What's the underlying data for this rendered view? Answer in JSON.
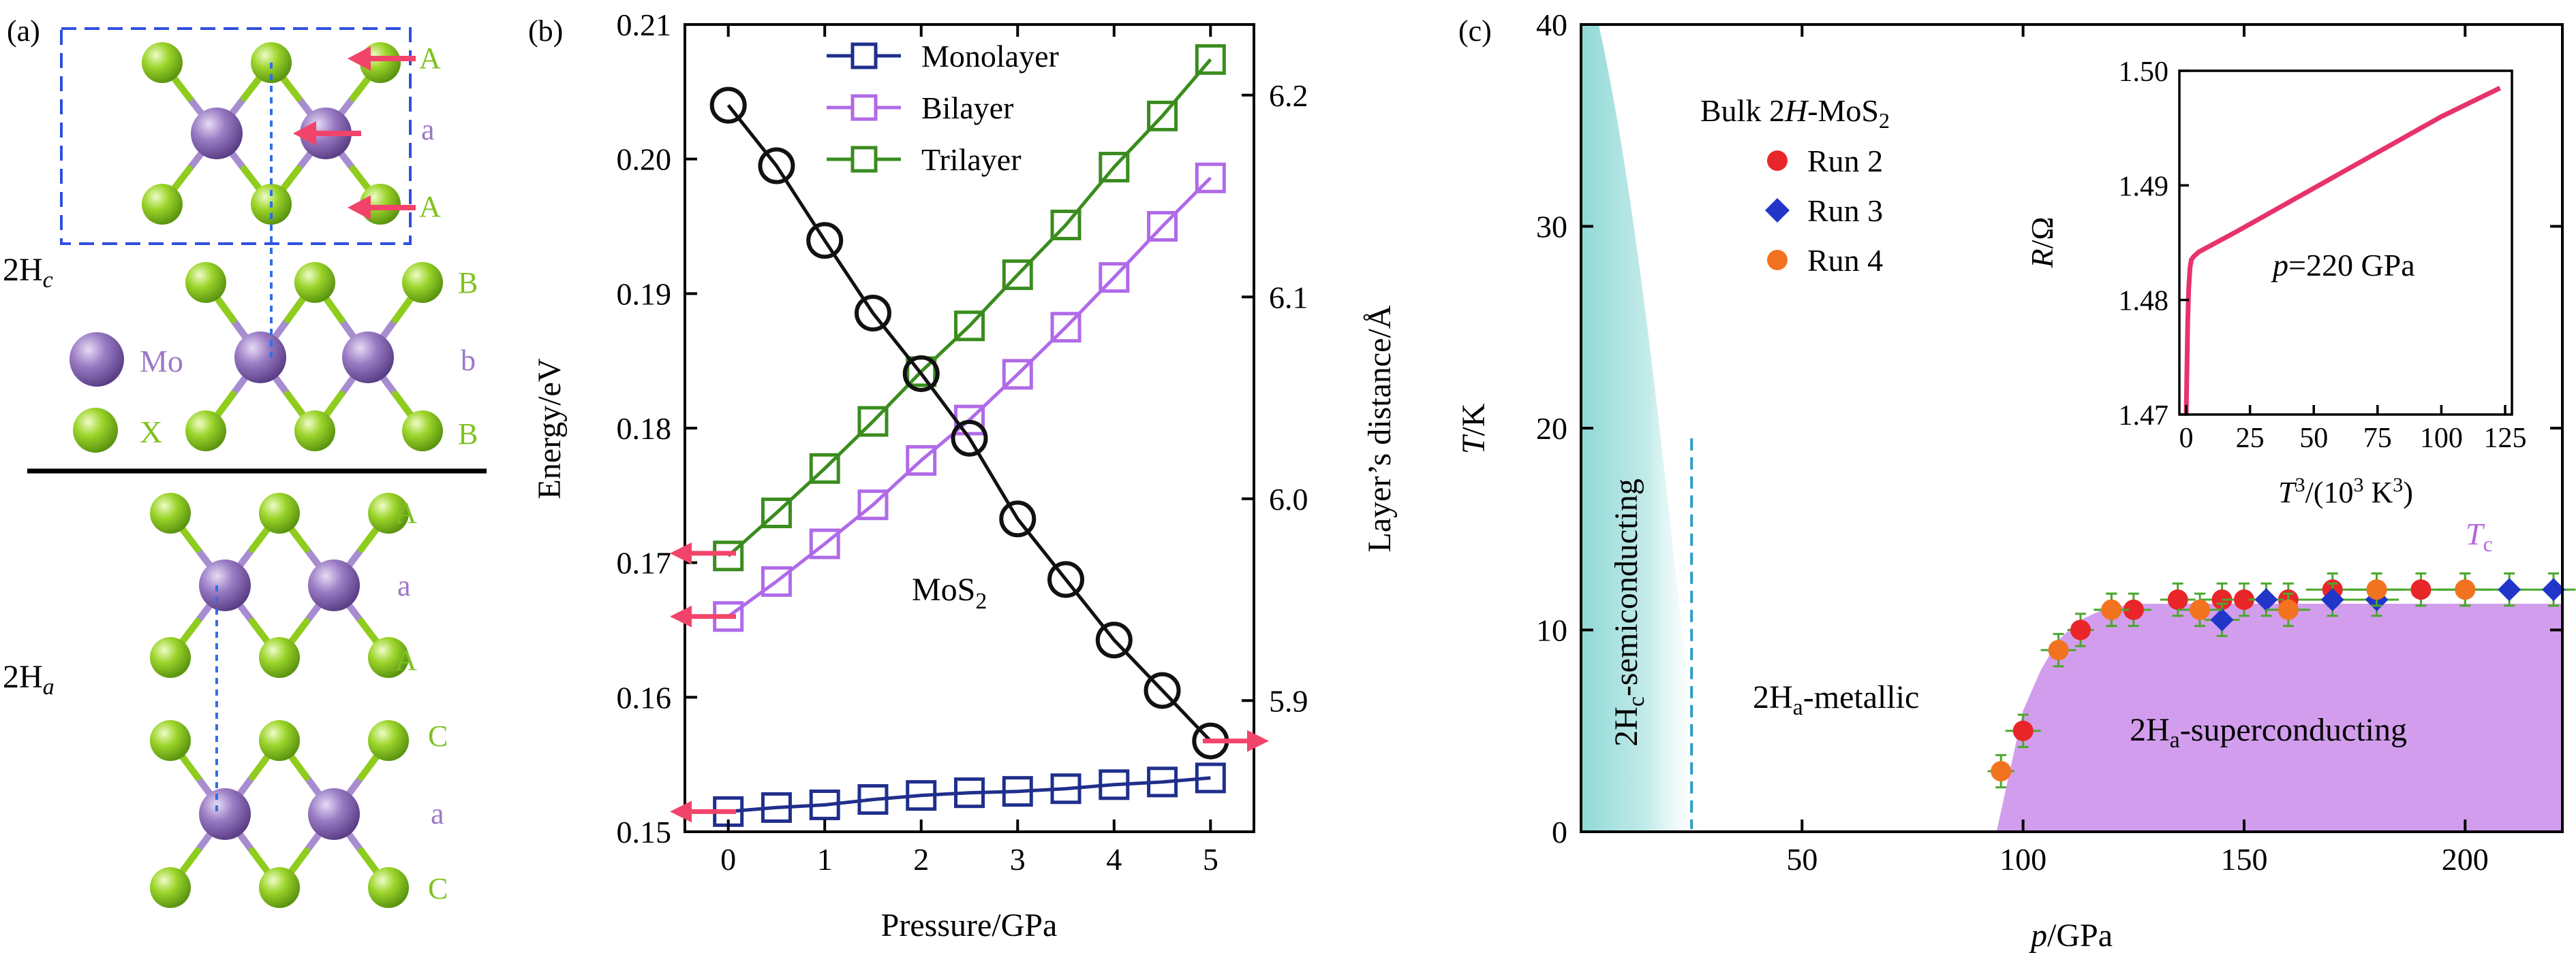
{
  "panel_labels": {
    "a": "(a)",
    "b": "(b)",
    "c": "(c)"
  },
  "colors": {
    "mo_atom": "#8a68b4",
    "x_atom": "#8fcc1e",
    "stack_label_green": "#7fc21f",
    "stack_label_purple": "#9b78c6",
    "arrow_red": "#f2446a",
    "dashed_blue": "#2f6fe6",
    "monolayer": "#1f2f8c",
    "bilayer": "#b06ae8",
    "trilayer": "#3a8c1e",
    "energy_curve": "#111111",
    "run2": "#e8262a",
    "run3": "#2136c8",
    "run4": "#f2731f",
    "error_bar": "#4aa82d",
    "superconducting_fill": "#d39ded",
    "semiconducting_fill": "#8fd9d6",
    "dashed_cyan": "#2e9cc8",
    "inset_line": "#e8326a",
    "tc_label": "#b566e0"
  },
  "panel_a": {
    "stack_labels": [
      "A",
      "a",
      "A",
      "B",
      "b",
      "B",
      "A",
      "a",
      "A",
      "C",
      "a",
      "C"
    ],
    "phase_labels": {
      "hc": {
        "base": "2H",
        "sub": "c"
      },
      "ha": {
        "base": "2H",
        "sub": "a"
      }
    },
    "legend": {
      "mo": "Mo",
      "x": "X"
    }
  },
  "chart_data": [
    {
      "type": "line",
      "panel": "b",
      "xlabel": "Pressure/GPa",
      "ylabel_left": "Energy/eV",
      "ylabel_right": "Layer’s distance/Å",
      "x_ticks": [
        0,
        1,
        2,
        3,
        4,
        5
      ],
      "y_left_ticks": [
        "0.15",
        "0.16",
        "0.17",
        "0.18",
        "0.19",
        "0.20",
        "0.21"
      ],
      "y_right_ticks": [
        "5.9",
        "6.0",
        "6.1",
        "6.2"
      ],
      "xlim": [
        -0.45,
        5.45
      ],
      "ylim_left": [
        0.15,
        0.21
      ],
      "ylim_right": [
        5.835,
        6.235
      ],
      "annotation": {
        "base": "MoS",
        "sub": "2"
      },
      "x": [
        0,
        0.5,
        1,
        1.5,
        2,
        2.5,
        3,
        3.5,
        4,
        4.5,
        5
      ],
      "series": [
        {
          "name": "Monolayer",
          "axis": "left",
          "marker": "square",
          "values": [
            0.1515,
            0.1518,
            0.152,
            0.1524,
            0.1527,
            0.1529,
            0.153,
            0.1532,
            0.1535,
            0.1537,
            0.154
          ]
        },
        {
          "name": "Bilayer",
          "axis": "left",
          "marker": "square",
          "values": [
            0.166,
            0.1686,
            0.1714,
            0.1743,
            0.1776,
            0.1806,
            0.184,
            0.1875,
            0.1912,
            0.195,
            0.1986
          ]
        },
        {
          "name": "Trilayer",
          "axis": "left",
          "marker": "square",
          "values": [
            0.1705,
            0.1737,
            0.177,
            0.1805,
            0.1842,
            0.1876,
            0.1914,
            0.1951,
            0.1994,
            0.2032,
            0.2074
          ]
        },
        {
          "name": "",
          "axis": "right",
          "marker": "circle",
          "values": [
            6.195,
            6.165,
            6.128,
            6.092,
            6.062,
            6.03,
            5.99,
            5.96,
            5.93,
            5.905,
            5.88
          ]
        }
      ],
      "arrows": [
        {
          "axis": "left",
          "value": 0.1707,
          "direction": "left"
        },
        {
          "axis": "left",
          "value": 0.166,
          "direction": "left"
        },
        {
          "axis": "left",
          "value": 0.1515,
          "direction": "left"
        },
        {
          "axis": "right",
          "value": 5.88,
          "direction": "right"
        }
      ]
    },
    {
      "type": "scatter",
      "panel": "c",
      "xlabel": {
        "italic": "p",
        "rest": "/GPa"
      },
      "ylabel": {
        "italic": "T",
        "rest": "/K"
      },
      "x_ticks": [
        "50",
        "100",
        "150",
        "200"
      ],
      "y_ticks": [
        "0",
        "10",
        "20",
        "30",
        "40"
      ],
      "xlim": [
        0,
        222
      ],
      "ylim": [
        0,
        40
      ],
      "title": {
        "prefix": "Bulk 2",
        "italic": "H",
        "suffix": "-MoS",
        "sub": "2"
      },
      "regions": [
        {
          "base": "2H",
          "sub": "c",
          "rest": "-semiconducting"
        },
        {
          "base": "2H",
          "sub": "a",
          "rest": "-metallic"
        },
        {
          "base": "2H",
          "sub": "a",
          "rest": "-superconducting"
        }
      ],
      "tc_label": {
        "base": "T",
        "sub": "c"
      },
      "series": [
        {
          "name": "Run 2",
          "marker": "circle",
          "x": [
            100,
            113,
            120,
            125,
            135,
            145,
            150,
            160,
            170,
            180,
            190,
            200
          ],
          "y": [
            5,
            10,
            11,
            11,
            11.5,
            11.5,
            11.5,
            11.5,
            12,
            12,
            12,
            12
          ],
          "xerr": [
            4,
            3,
            4,
            4,
            4,
            5,
            5,
            5,
            6,
            6,
            6,
            6
          ],
          "yerr": [
            0.8,
            0.8,
            0.8,
            0.8,
            0.8,
            0.8,
            0.8,
            0.8,
            0.8,
            0.8,
            0.8,
            0.8
          ]
        },
        {
          "name": "Run 3",
          "marker": "diamond",
          "x": [
            145,
            155,
            170,
            180,
            210,
            220
          ],
          "y": [
            10.5,
            11.5,
            11.5,
            11.5,
            12,
            12
          ],
          "xerr": [
            4,
            4,
            5,
            5,
            5,
            5
          ],
          "yerr": [
            0.8,
            0.8,
            0.8,
            0.8,
            0.8,
            0.8
          ]
        },
        {
          "name": "Run 4",
          "marker": "circle",
          "x": [
            95,
            108,
            120,
            140,
            160,
            180,
            200
          ],
          "y": [
            3,
            9,
            11,
            11,
            11,
            12,
            12
          ],
          "xerr": [
            3,
            4,
            4,
            5,
            5,
            6,
            6
          ],
          "yerr": [
            0.8,
            0.8,
            0.8,
            0.8,
            0.8,
            0.8,
            0.8
          ]
        }
      ],
      "tc_boundary": {
        "x": [
          94,
          97,
          100,
          104,
          108,
          113,
          118,
          125,
          222
        ],
        "y": [
          0,
          3,
          6,
          8,
          9.5,
          10.5,
          11,
          11.3,
          11.3
        ]
      }
    },
    {
      "type": "line",
      "panel": "c-inset",
      "xlabel": {
        "base": "T",
        "sup": "3",
        "rest": "/(10",
        "sup2": "3",
        "rest2": " K",
        "sup3": "3",
        "end": ")"
      },
      "ylabel": {
        "italic": "R",
        "rest": "/Ω"
      },
      "x_ticks": [
        "0",
        "25",
        "50",
        "75",
        "100",
        "125"
      ],
      "y_ticks": [
        "1.47",
        "1.48",
        "1.49",
        "1.50"
      ],
      "xlim": [
        0,
        125
      ],
      "ylim": [
        1.47,
        1.5
      ],
      "annotation": {
        "italic": "p",
        "rest": "=220 GPa"
      },
      "x": [
        0,
        0.3,
        0.6,
        1,
        1.5,
        2,
        3,
        5,
        10,
        20,
        40,
        60,
        80,
        100,
        123
      ],
      "y": [
        1.47,
        1.474,
        1.478,
        1.481,
        1.4828,
        1.4835,
        1.4838,
        1.4842,
        1.4848,
        1.486,
        1.4885,
        1.491,
        1.4935,
        1.496,
        1.4985
      ]
    }
  ]
}
